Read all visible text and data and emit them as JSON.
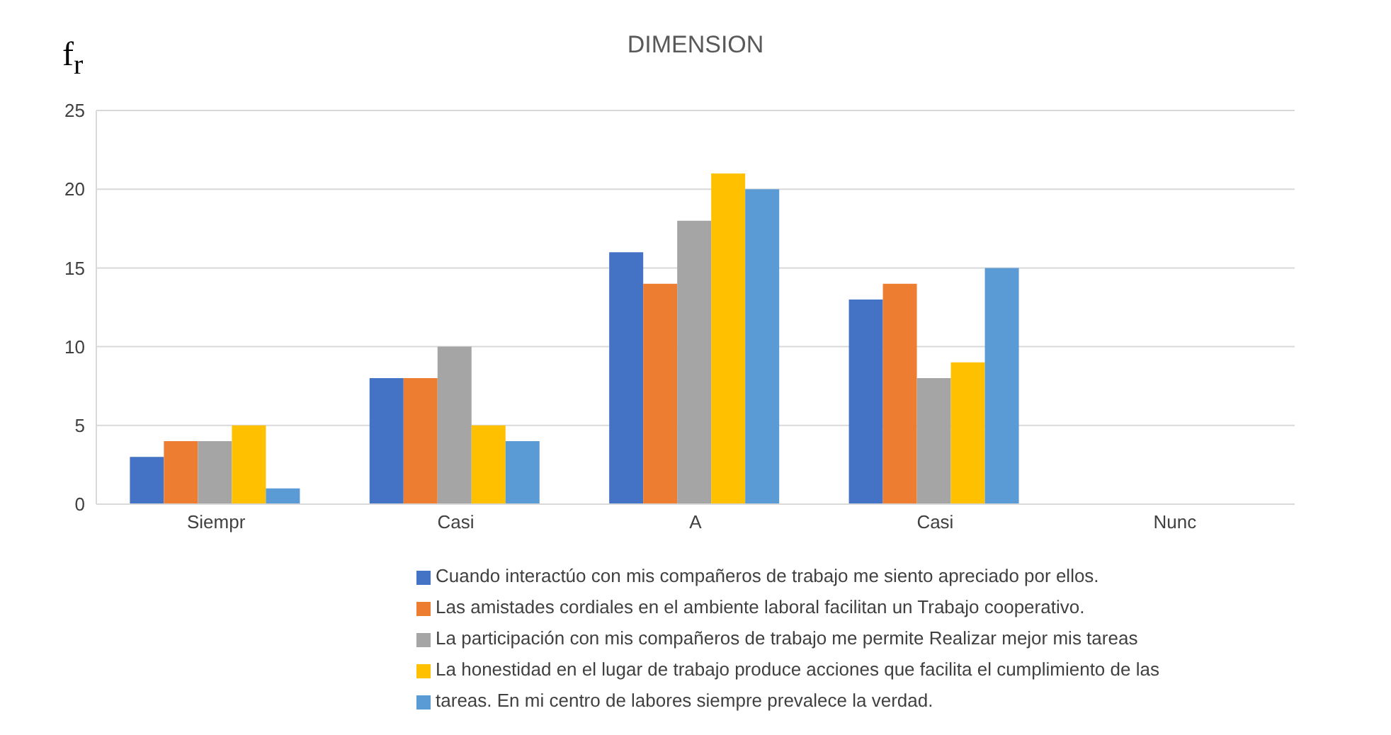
{
  "chart_data": {
    "type": "bar",
    "title": "DIMENSION",
    "ylabel": "f$_{r}$",
    "categories": [
      "Siempr",
      "Casi",
      "A",
      "Casi",
      "Nunc"
    ],
    "series": [
      {
        "name": "Cuando interactúo con mis compañeros de trabajo me siento apreciado por ellos.",
        "color": "#4472c4",
        "values": [
          3,
          8,
          16,
          13,
          0
        ]
      },
      {
        "name": "Las amistades cordiales en el ambiente laboral facilitan un Trabajo cooperativo.",
        "color": "#ed7d31",
        "values": [
          4,
          8,
          14,
          14,
          0
        ]
      },
      {
        "name": "La participación con mis compañeros de trabajo me permite Realizar mejor mis tareas",
        "color": "#a5a5a5",
        "values": [
          4,
          10,
          18,
          8,
          0
        ]
      },
      {
        "name": "La honestidad en el lugar de trabajo produce acciones que facilita el cumplimiento de las",
        "color": "#ffc000",
        "values": [
          5,
          5,
          21,
          9,
          0
        ]
      },
      {
        "name": "tareas. En mi centro de labores siempre prevalece la verdad.",
        "color": "#5b9bd5",
        "values": [
          1,
          4,
          20,
          15,
          0
        ]
      }
    ],
    "ylim": [
      0,
      25
    ],
    "yticks": [
      0,
      5,
      10,
      15,
      20,
      25
    ],
    "grid": "y",
    "legend": "bottom"
  }
}
